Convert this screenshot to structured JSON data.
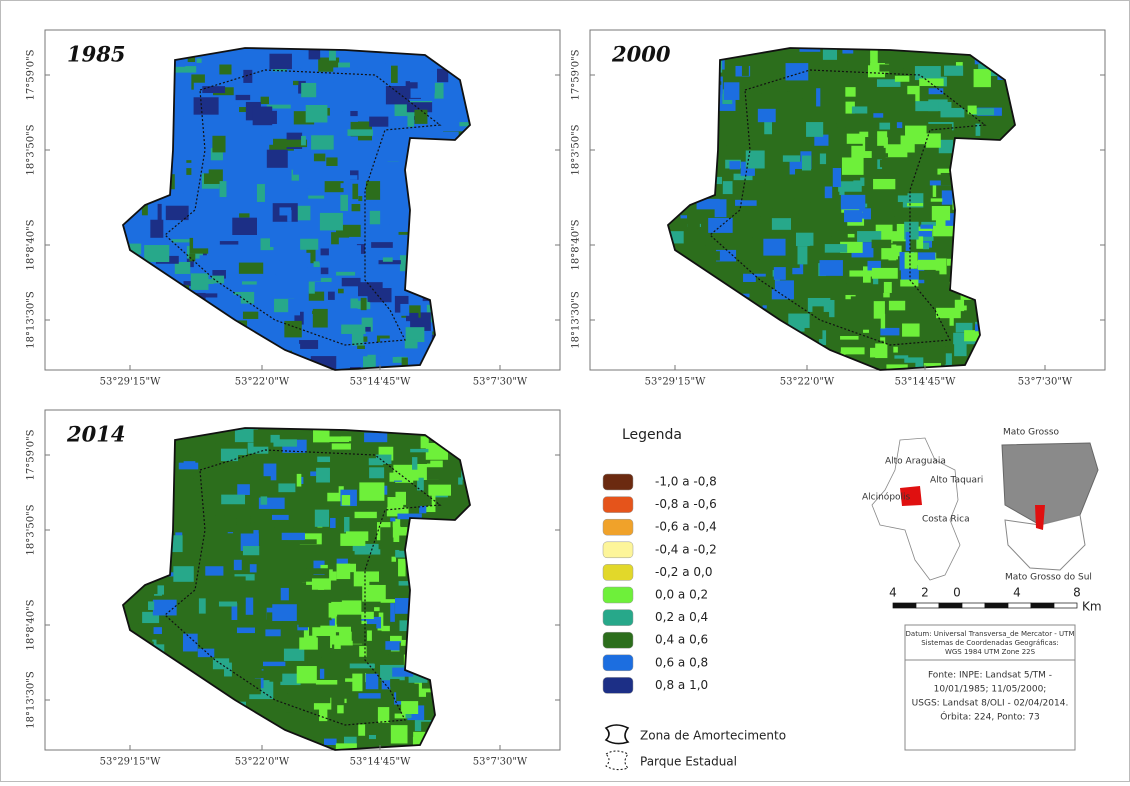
{
  "panels": [
    {
      "year": "1985",
      "lat_labels": [
        "17°59'0\"S",
        "18°3'50\"S",
        "18°8'40\"S",
        "18°13'30\"S"
      ],
      "lon_labels": [
        "53°29'15\"W",
        "53°22'0\"W",
        "53°14'45\"W",
        "53°7'30\"W"
      ]
    },
    {
      "year": "2000",
      "lat_labels": [
        "17°59'0\"S",
        "18°3'50\"S",
        "18°8'40\"S",
        "18°13'30\"S"
      ],
      "lon_labels": [
        "53°29'15\"W",
        "53°22'0\"W",
        "53°14'45\"W",
        "53°7'30\"W"
      ]
    },
    {
      "year": "2014",
      "lat_labels": [
        "17°59'0\"S",
        "18°3'50\"S",
        "18°8'40\"S",
        "18°13'30\"S"
      ],
      "lon_labels": [
        "53°29'15\"W",
        "53°22'0\"W",
        "53°14'45\"W",
        "53°7'30\"W"
      ]
    }
  ],
  "legend": {
    "title": "Legenda",
    "classes": [
      {
        "label": "-1,0 a -0,8",
        "color": "#6b2a10"
      },
      {
        "label": "-0,8 a -0,6",
        "color": "#e5541b"
      },
      {
        "label": "-0,6 a -0,4",
        "color": "#f0a22a"
      },
      {
        "label": "-0,4 a -0,2",
        "color": "#fdf59a"
      },
      {
        "label": "-0,2 a 0,0",
        "color": "#e2d82a"
      },
      {
        "label": "0,0 a 0,2",
        "color": "#6ef03a"
      },
      {
        "label": "0,2 a 0,4",
        "color": "#27a88a"
      },
      {
        "label": "0,4 a 0,6",
        "color": "#2c6e1c"
      },
      {
        "label": "0,6 a 0,8",
        "color": "#1c6ee0"
      },
      {
        "label": "0,8 a 1,0",
        "color": "#1c2f86"
      }
    ],
    "boundaries": [
      "Zona de Amortecimento",
      "Parque Estadual"
    ]
  },
  "inset": {
    "labels": [
      "Alto Araguaia",
      "Alto Taquari",
      "Alcinópolis",
      "Costa Rica",
      "Mato Grosso",
      "Mato Grosso do Sul"
    ]
  },
  "scale": {
    "ticks": [
      "4",
      "2",
      "0",
      "4",
      "8"
    ],
    "unit": "Km"
  },
  "info": {
    "datum": [
      "Datum: Universal Transversa_de Mercator - UTM",
      "Sistemas de Coordenadas Geográficas:",
      "WGS 1984 UTM Zone 22S"
    ],
    "source": [
      "Fonte: INPE: Landsat 5/TM -",
      "10/01/1985; 11/05/2000;",
      "USGS: Landsat 8/OLI - 02/04/2014.",
      "Órbita: 224, Ponto: 73"
    ]
  }
}
